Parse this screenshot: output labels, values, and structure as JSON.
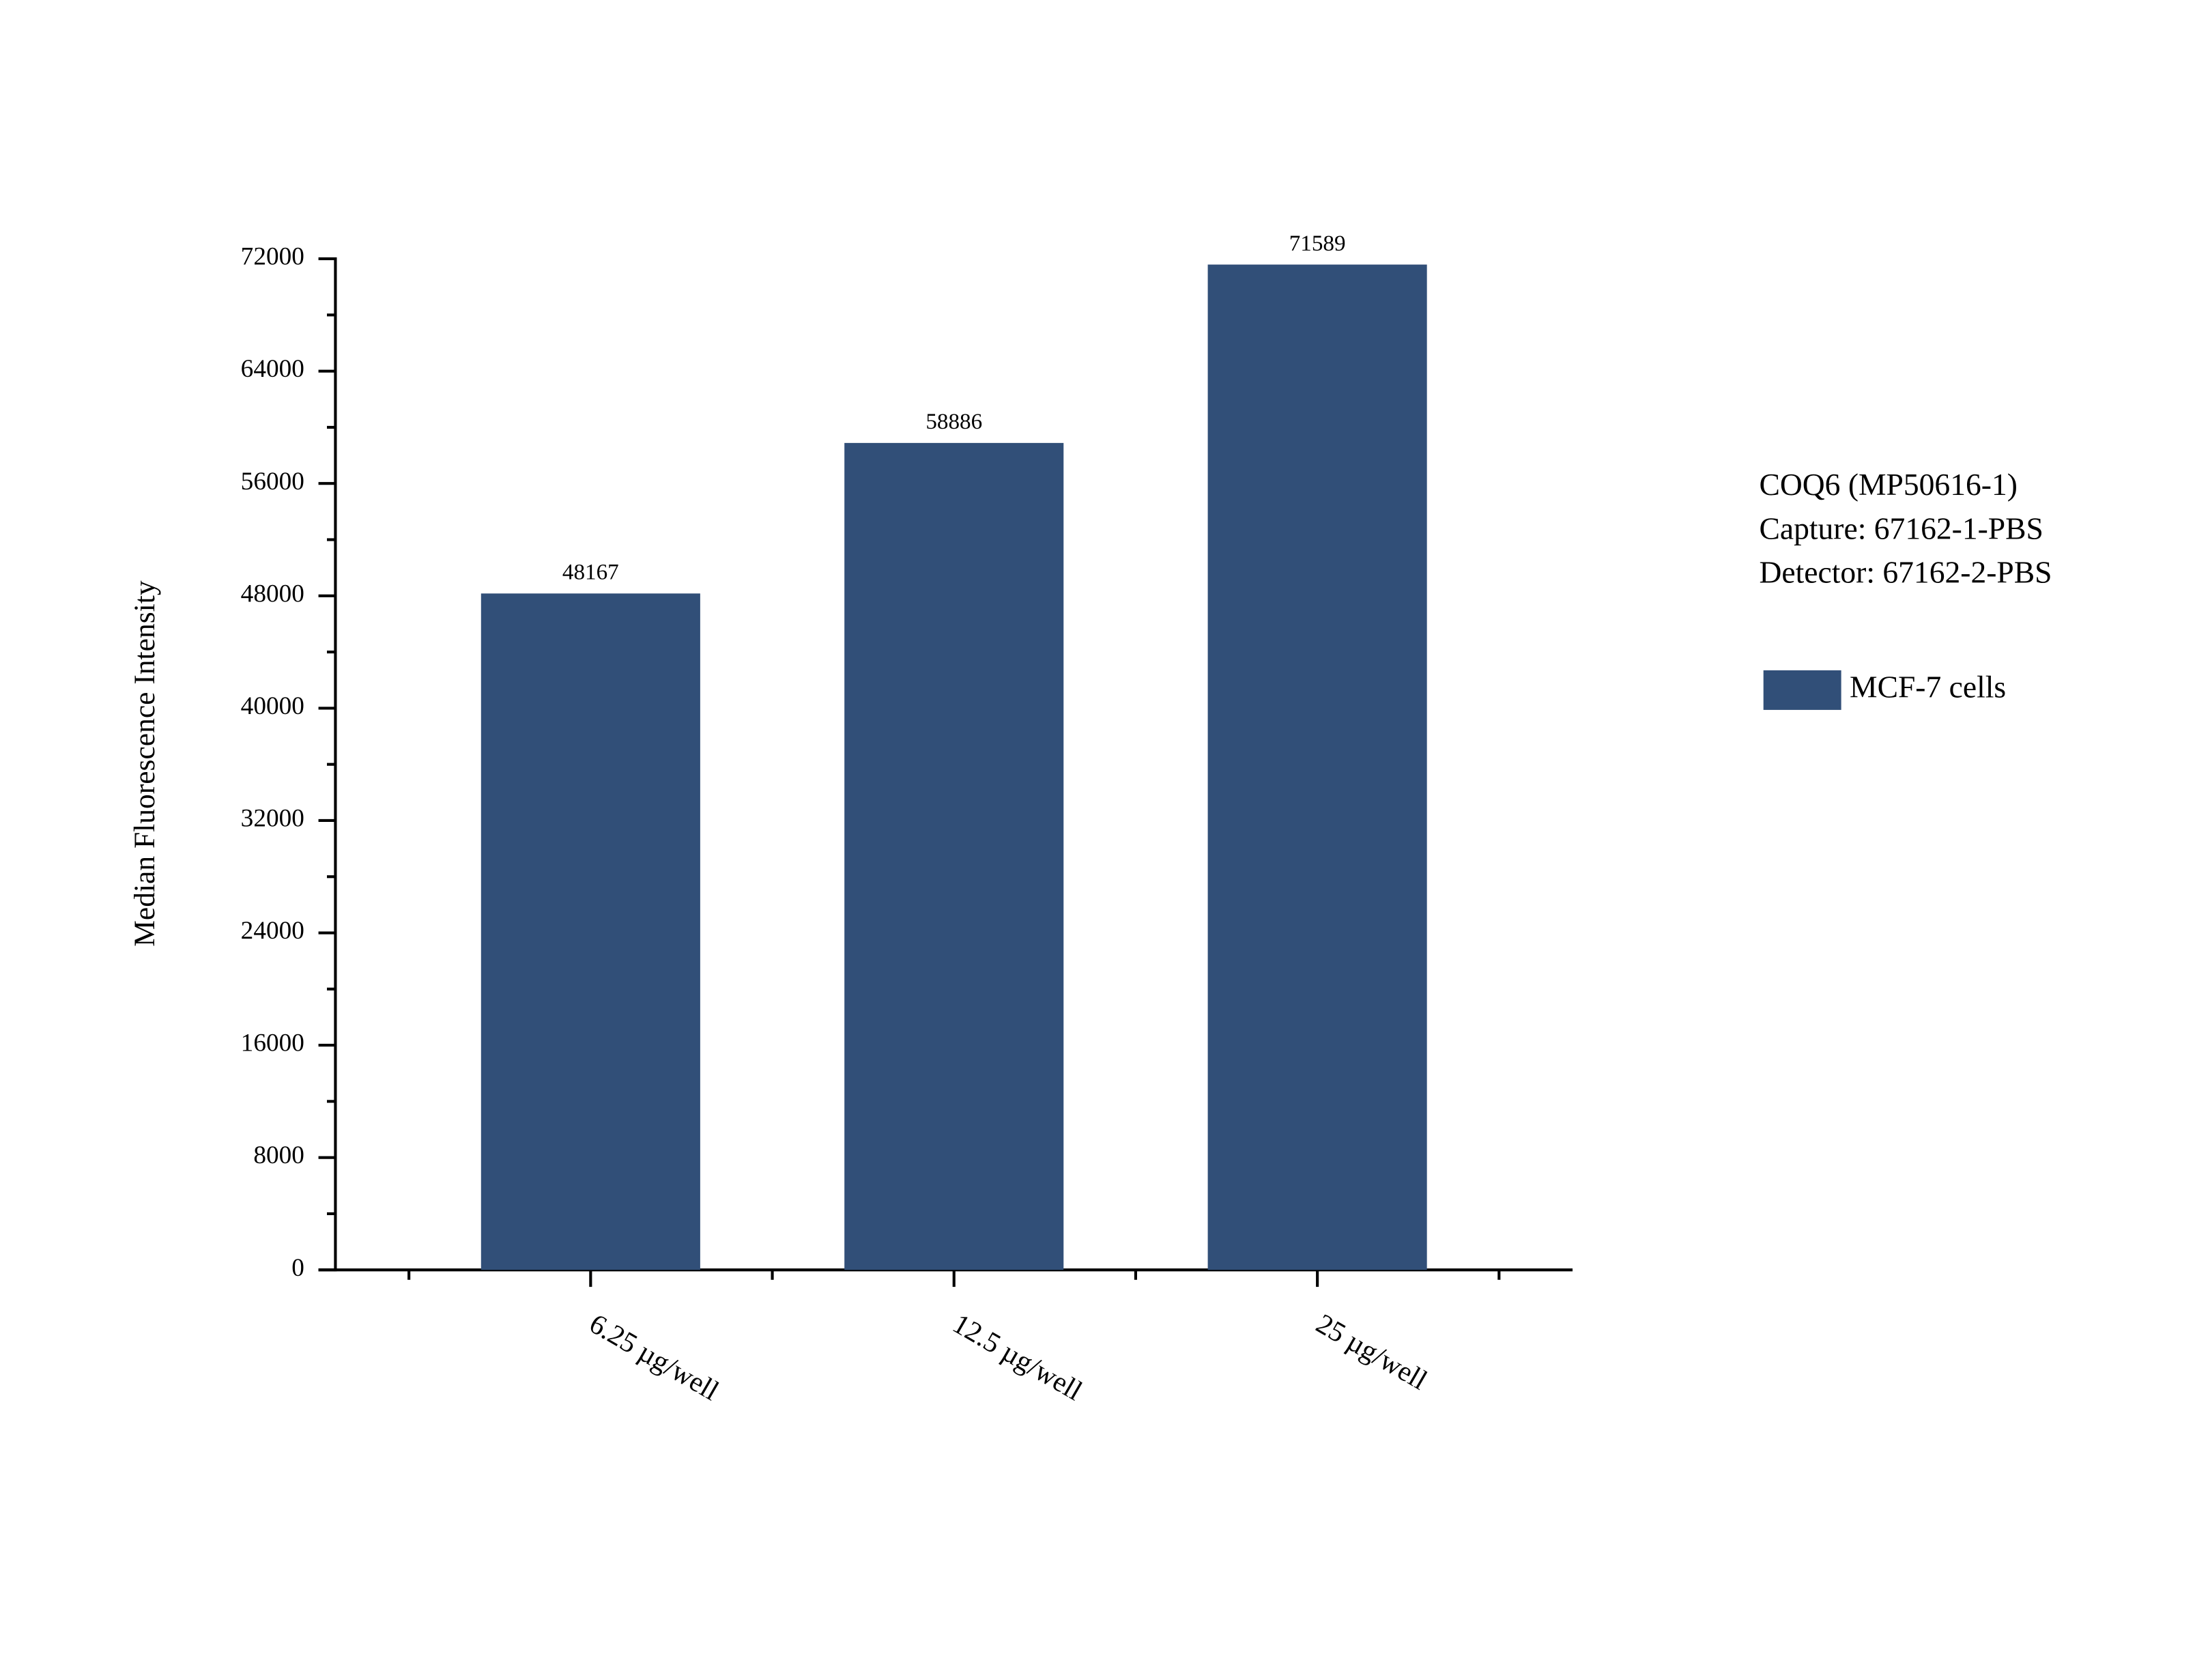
{
  "chart_data": {
    "type": "bar",
    "y_label": "Median Fluorescence Intensity",
    "categories": [
      "6.25 µg/well",
      "12.5 µg/well",
      "25 µg/well"
    ],
    "series": [
      {
        "name": "MCF-7 cells",
        "color": "#314f78",
        "values": [
          48167,
          58886,
          71589
        ]
      }
    ],
    "ylim": [
      0,
      72000
    ],
    "yticks": [
      0,
      8000,
      16000,
      24000,
      32000,
      40000,
      48000,
      56000,
      64000,
      72000
    ],
    "annotations": [
      "COQ6 (MP50616-1)",
      "Capture: 67162-1-PBS",
      "Detector: 67162-2-PBS"
    ],
    "legend_position": "right",
    "grid": false
  }
}
